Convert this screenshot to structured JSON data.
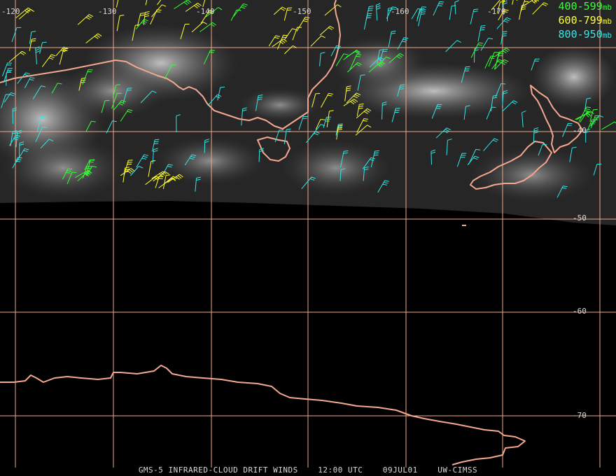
{
  "colors": {
    "background": "#000000",
    "grid": "#f0a888",
    "coast": "#f4a890",
    "wind_400_599": "#33ff33",
    "wind_600_799": "#ffff33",
    "wind_800_950": "#33e6e6",
    "text": "#d9d9d9"
  },
  "legend": [
    {
      "range": "400-599",
      "unit": "mb",
      "color": "#33ff33"
    },
    {
      "range": "600-799",
      "unit": "mb",
      "color": "#ffff33"
    },
    {
      "range": "800-950",
      "unit": "mb",
      "color": "#33e6e6"
    }
  ],
  "longitude_labels": [
    "-120",
    "-130",
    "-140",
    "-150",
    "-160",
    "-170"
  ],
  "latitude_labels": [
    "-40",
    "-50",
    "-60",
    "-70"
  ],
  "footer": {
    "product": "GMS-5 INFRARED-CLOUD DRIFT WINDS",
    "time": "12:00 UTC",
    "date": "09JUL01",
    "source": "UW-CIMSS"
  }
}
